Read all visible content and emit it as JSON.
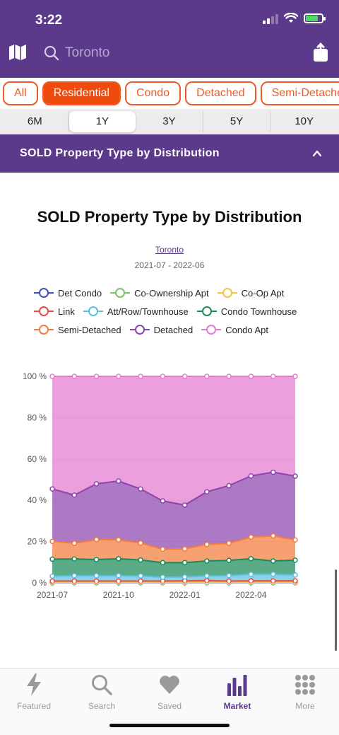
{
  "status": {
    "time": "3:22"
  },
  "header": {
    "search_placeholder": "Toronto"
  },
  "type_chips": [
    {
      "label": "All",
      "active": false
    },
    {
      "label": "Residential",
      "active": true
    },
    {
      "label": "Condo",
      "active": false
    },
    {
      "label": "Detached",
      "active": false
    },
    {
      "label": "Semi-Detached",
      "active": false
    }
  ],
  "ranges": [
    {
      "label": "6M",
      "active": false
    },
    {
      "label": "1Y",
      "active": true
    },
    {
      "label": "3Y",
      "active": false
    },
    {
      "label": "5Y",
      "active": false
    },
    {
      "label": "10Y",
      "active": false
    }
  ],
  "section": {
    "title": "SOLD Property Type by Distribution"
  },
  "chart_header": {
    "title": "SOLD Property Type by Distribution",
    "location": "Toronto",
    "period": "2021-07 - 2022-06"
  },
  "colors": {
    "brand": "#5b3a8c",
    "accent": "#f04b0f"
  },
  "chart_data": {
    "type": "area",
    "stacked": true,
    "x": [
      "2021-07",
      "2021-08",
      "2021-09",
      "2021-10",
      "2021-11",
      "2021-12",
      "2022-01",
      "2022-02",
      "2022-03",
      "2022-04",
      "2022-05",
      "2022-06"
    ],
    "x_tick_labels": [
      "2021-07",
      "2021-10",
      "2022-01",
      "2022-04"
    ],
    "y_tick_labels": [
      "0 %",
      "20 %",
      "40 %",
      "60 %",
      "80 %",
      "100 %"
    ],
    "ylim": [
      0,
      100
    ],
    "grid": true,
    "legend_position": "top",
    "series": [
      {
        "name": "Det Condo",
        "color": "#3f51b5",
        "cumulative": [
          0.1,
          0.1,
          0.1,
          0.1,
          0.1,
          0.1,
          0.1,
          0.1,
          0.1,
          0.1,
          0.1,
          0.1
        ]
      },
      {
        "name": "Co-Ownership Apt",
        "color": "#7cc16b",
        "cumulative": [
          0.2,
          0.2,
          0.2,
          0.2,
          0.2,
          0.2,
          0.2,
          0.2,
          0.2,
          0.2,
          0.2,
          0.2
        ]
      },
      {
        "name": "Co-Op Apt",
        "color": "#f5c342",
        "cumulative": [
          0.3,
          0.3,
          0.3,
          0.3,
          0.3,
          0.3,
          0.3,
          0.3,
          0.3,
          0.3,
          0.3,
          0.3
        ]
      },
      {
        "name": "Link",
        "color": "#e84a4a",
        "cumulative": [
          0.9,
          0.9,
          0.9,
          0.9,
          0.9,
          0.9,
          1.0,
          1.1,
          0.9,
          1.0,
          1.0,
          1.0
        ]
      },
      {
        "name": "Att/Row/Townhouse",
        "color": "#5bc0de",
        "cumulative": [
          3.3,
          3.5,
          3.5,
          3.5,
          3.4,
          2.8,
          2.9,
          3.4,
          3.5,
          4.2,
          4.2,
          3.8
        ]
      },
      {
        "name": "Condo Townhouse",
        "color": "#1a8a5a",
        "cumulative": [
          11.5,
          11.6,
          11.3,
          11.7,
          11.1,
          9.8,
          9.8,
          10.6,
          10.9,
          11.7,
          10.6,
          11.0
        ]
      },
      {
        "name": "Semi-Detached",
        "color": "#f47c3c",
        "cumulative": [
          20.1,
          19.2,
          21.0,
          20.9,
          19.3,
          16.3,
          16.5,
          18.6,
          19.2,
          22.2,
          22.8,
          20.8
        ]
      },
      {
        "name": "Detached",
        "color": "#8e44ad",
        "cumulative": [
          45.5,
          42.5,
          48.0,
          49.3,
          45.5,
          39.7,
          37.7,
          44.1,
          47.1,
          51.8,
          53.6,
          51.7
        ]
      },
      {
        "name": "Condo Apt",
        "color": "#e57ad0",
        "cumulative": [
          100,
          100,
          100,
          100,
          100,
          100,
          100,
          100,
          100,
          100,
          100,
          100
        ]
      }
    ]
  },
  "tabbar": [
    {
      "label": "Featured",
      "icon": "bolt-icon",
      "active": false
    },
    {
      "label": "Search",
      "icon": "search-icon",
      "active": false
    },
    {
      "label": "Saved",
      "icon": "heart-icon",
      "active": false
    },
    {
      "label": "Market",
      "icon": "bar-chart-icon",
      "active": true
    },
    {
      "label": "More",
      "icon": "grid-dots-icon",
      "active": false
    }
  ]
}
